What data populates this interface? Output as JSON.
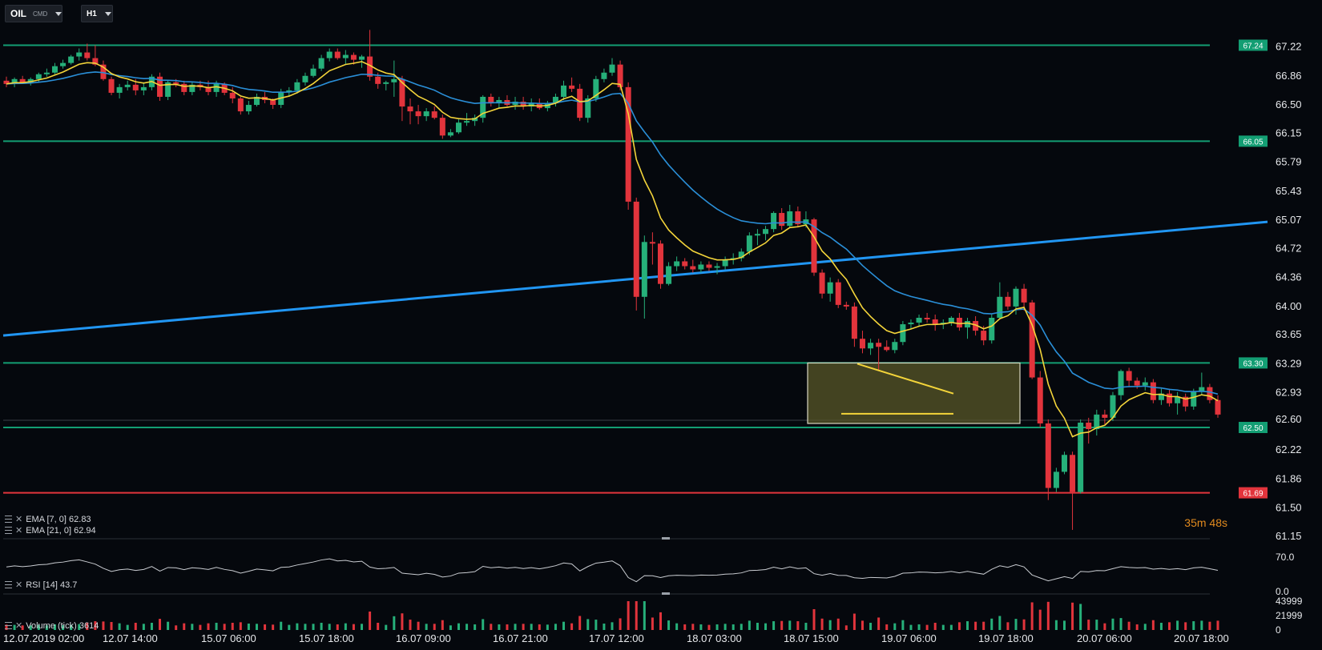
{
  "toolbar": {
    "symbol": "OIL",
    "symbol_type": "CMD",
    "timeframe": "H1"
  },
  "indicators": {
    "ema7": "EMA [7, 0] 62.83",
    "ema21": "EMA [21, 0] 62.94",
    "rsi": "RSI [14] 43.7",
    "volume": "Volume (tick) 3614"
  },
  "timer": {
    "min": "35",
    "min_unit": "m",
    "sec": "48",
    "sec_unit": "s"
  },
  "colors": {
    "background": "#05080d",
    "bull": "#26b07a",
    "bear": "#e2343c",
    "ema7": "#f3d43a",
    "ema21": "#2a8fd8",
    "trendline": "#2196f3",
    "level_green": "#139e73",
    "level_red": "#e2343c",
    "box_fill": "#5c5a2a"
  },
  "chart_data": {
    "type": "candlestick",
    "price_axis": {
      "ticks": [
        "67.22",
        "66.86",
        "66.50",
        "66.15",
        "65.79",
        "65.43",
        "65.07",
        "64.72",
        "64.36",
        "64.00",
        "63.65",
        "63.29",
        "62.93",
        "62.60",
        "62.22",
        "61.86",
        "61.50",
        "61.15"
      ],
      "current_price": "62.60"
    },
    "time_axis": {
      "ticks": [
        "12.07.2019 02:00",
        "12.07 14:00",
        "15.07 06:00",
        "15.07 18:00",
        "16.07 09:00",
        "16.07 21:00",
        "17.07 12:00",
        "18.07 03:00",
        "18.07 15:00",
        "19.07 06:00",
        "19.07 18:00",
        "20.07 06:00",
        "20.07 18:00"
      ]
    },
    "levels": [
      {
        "price": 67.24,
        "label": "67.24",
        "color": "green"
      },
      {
        "price": 66.05,
        "label": "66.05",
        "color": "green"
      },
      {
        "price": 63.3,
        "label": "63.30",
        "color": "green"
      },
      {
        "price": 62.5,
        "label": "62.50",
        "color": "green"
      },
      {
        "price": 61.69,
        "label": "61.69",
        "color": "red"
      }
    ],
    "trendline": {
      "from": {
        "x": "12.07.2019 02:00",
        "y": 63.64
      },
      "to": {
        "x": "20.07 18:00",
        "y": 65.05
      }
    },
    "highlight_box": {
      "x_from": "18.07 13:00",
      "x_to": "19.07 14:00",
      "y_from": 62.55,
      "y_to": 63.3
    },
    "pattern_lines": [
      {
        "from": {
          "x": "18.07 18:00",
          "y": 63.29
        },
        "to": {
          "x": "19.07 11:00",
          "y": 62.92
        }
      },
      {
        "from": {
          "x": "18.07 16:00",
          "y": 62.67
        },
        "to": {
          "x": "19.07 11:00",
          "y": 62.67
        }
      }
    ],
    "candles_ohlc": [
      [
        66.8,
        66.85,
        66.72,
        66.76
      ],
      [
        66.76,
        66.84,
        66.72,
        66.82
      ],
      [
        66.82,
        66.86,
        66.76,
        66.78
      ],
      [
        66.78,
        66.84,
        66.74,
        66.82
      ],
      [
        66.82,
        66.9,
        66.78,
        66.88
      ],
      [
        66.88,
        66.95,
        66.85,
        66.9
      ],
      [
        66.9,
        67.02,
        66.88,
        66.98
      ],
      [
        66.98,
        67.06,
        66.95,
        67.02
      ],
      [
        67.02,
        67.12,
        67.0,
        67.1
      ],
      [
        67.1,
        67.2,
        67.05,
        67.15
      ],
      [
        67.15,
        67.26,
        67.05,
        67.08
      ],
      [
        67.08,
        67.24,
        66.98,
        67.0
      ],
      [
        67.0,
        67.05,
        66.8,
        66.82
      ],
      [
        66.82,
        66.85,
        66.62,
        66.65
      ],
      [
        66.65,
        66.76,
        66.58,
        66.72
      ],
      [
        66.72,
        66.8,
        66.68,
        66.75
      ],
      [
        66.75,
        66.82,
        66.62,
        66.68
      ],
      [
        66.68,
        66.78,
        66.62,
        66.72
      ],
      [
        66.72,
        66.88,
        66.68,
        66.85
      ],
      [
        66.85,
        66.9,
        66.55,
        66.6
      ],
      [
        66.6,
        66.8,
        66.56,
        66.78
      ],
      [
        66.78,
        66.82,
        66.72,
        66.76
      ],
      [
        66.76,
        66.8,
        66.62,
        66.66
      ],
      [
        66.66,
        66.78,
        66.62,
        66.75
      ],
      [
        66.75,
        66.8,
        66.68,
        66.72
      ],
      [
        66.72,
        66.8,
        66.62,
        66.66
      ],
      [
        66.66,
        66.8,
        66.6,
        66.76
      ],
      [
        66.76,
        66.78,
        66.62,
        66.65
      ],
      [
        66.65,
        66.72,
        66.52,
        66.58
      ],
      [
        66.58,
        66.6,
        66.38,
        66.42
      ],
      [
        66.42,
        66.55,
        66.38,
        66.5
      ],
      [
        66.5,
        66.64,
        66.48,
        66.6
      ],
      [
        66.6,
        66.66,
        66.52,
        66.56
      ],
      [
        66.56,
        66.58,
        66.45,
        66.5
      ],
      [
        66.5,
        66.7,
        66.46,
        66.66
      ],
      [
        66.66,
        66.72,
        66.6,
        66.68
      ],
      [
        66.68,
        66.82,
        66.64,
        66.78
      ],
      [
        66.78,
        66.9,
        66.74,
        66.86
      ],
      [
        66.86,
        67.0,
        66.84,
        66.95
      ],
      [
        66.95,
        67.12,
        66.92,
        67.08
      ],
      [
        67.08,
        67.2,
        67.04,
        67.16
      ],
      [
        67.16,
        67.2,
        67.06,
        67.08
      ],
      [
        67.08,
        67.18,
        67.0,
        67.12
      ],
      [
        67.12,
        67.15,
        67.0,
        67.06
      ],
      [
        67.06,
        67.12,
        66.96,
        67.1
      ],
      [
        67.1,
        67.43,
        66.8,
        66.85
      ],
      [
        66.85,
        66.9,
        66.7,
        66.76
      ],
      [
        66.76,
        66.8,
        66.68,
        66.78
      ],
      [
        66.78,
        67.05,
        66.6,
        66.82
      ],
      [
        66.82,
        66.86,
        66.3,
        66.48
      ],
      [
        66.48,
        66.58,
        66.26,
        66.42
      ],
      [
        66.42,
        66.5,
        66.26,
        66.36
      ],
      [
        66.36,
        66.46,
        66.3,
        66.42
      ],
      [
        66.42,
        66.48,
        66.32,
        66.34
      ],
      [
        66.34,
        66.38,
        66.08,
        66.12
      ],
      [
        66.12,
        66.2,
        66.1,
        66.16
      ],
      [
        66.16,
        66.32,
        66.14,
        66.28
      ],
      [
        66.28,
        66.4,
        66.24,
        66.3
      ],
      [
        66.3,
        66.38,
        66.24,
        66.34
      ],
      [
        66.34,
        66.62,
        66.28,
        66.6
      ],
      [
        66.6,
        66.64,
        66.48,
        66.52
      ],
      [
        66.52,
        66.6,
        66.46,
        66.56
      ],
      [
        66.56,
        66.62,
        66.48,
        66.5
      ],
      [
        66.5,
        66.6,
        66.44,
        66.54
      ],
      [
        66.54,
        66.6,
        66.44,
        66.48
      ],
      [
        66.48,
        66.58,
        66.42,
        66.52
      ],
      [
        66.52,
        66.58,
        66.44,
        66.46
      ],
      [
        66.46,
        66.55,
        66.42,
        66.52
      ],
      [
        66.52,
        66.64,
        66.48,
        66.6
      ],
      [
        66.6,
        66.8,
        66.56,
        66.74
      ],
      [
        66.74,
        66.84,
        66.66,
        66.7
      ],
      [
        66.7,
        66.76,
        66.3,
        66.34
      ],
      [
        66.34,
        66.62,
        66.28,
        66.58
      ],
      [
        66.58,
        66.86,
        66.54,
        66.82
      ],
      [
        66.82,
        66.95,
        66.78,
        66.9
      ],
      [
        66.9,
        67.08,
        66.86,
        67.0
      ],
      [
        67.0,
        67.05,
        66.68,
        66.72
      ],
      [
        66.72,
        66.78,
        65.2,
        65.3
      ],
      [
        65.3,
        65.35,
        63.95,
        64.12
      ],
      [
        64.12,
        64.88,
        63.85,
        64.8
      ],
      [
        64.8,
        64.92,
        64.52,
        64.78
      ],
      [
        64.78,
        64.82,
        64.22,
        64.28
      ],
      [
        64.28,
        64.55,
        64.26,
        64.5
      ],
      [
        64.5,
        64.62,
        64.44,
        64.56
      ],
      [
        64.56,
        64.6,
        64.46,
        64.5
      ],
      [
        64.5,
        64.58,
        64.42,
        64.46
      ],
      [
        64.46,
        64.56,
        64.42,
        64.52
      ],
      [
        64.52,
        64.56,
        64.44,
        64.48
      ],
      [
        64.48,
        64.54,
        64.4,
        64.5
      ],
      [
        64.5,
        64.62,
        64.46,
        64.58
      ],
      [
        64.58,
        64.66,
        64.52,
        64.6
      ],
      [
        64.6,
        64.72,
        64.56,
        64.68
      ],
      [
        64.68,
        64.92,
        64.64,
        64.88
      ],
      [
        64.88,
        64.96,
        64.76,
        64.9
      ],
      [
        64.9,
        65.0,
        64.82,
        64.96
      ],
      [
        64.96,
        65.18,
        64.92,
        65.16
      ],
      [
        65.16,
        65.22,
        64.95,
        65.0
      ],
      [
        65.0,
        65.26,
        64.98,
        65.18
      ],
      [
        65.18,
        65.24,
        64.98,
        65.02
      ],
      [
        65.02,
        65.18,
        64.98,
        65.08
      ],
      [
        65.08,
        65.1,
        64.38,
        64.42
      ],
      [
        64.42,
        64.46,
        64.1,
        64.16
      ],
      [
        64.16,
        64.36,
        64.06,
        64.3
      ],
      [
        64.3,
        64.34,
        63.98,
        64.02
      ],
      [
        64.02,
        64.06,
        63.96,
        64.0
      ],
      [
        64.0,
        64.05,
        63.5,
        63.6
      ],
      [
        63.6,
        63.7,
        63.42,
        63.48
      ],
      [
        63.48,
        63.6,
        63.4,
        63.55
      ],
      [
        63.55,
        63.6,
        63.2,
        63.5
      ],
      [
        63.5,
        63.58,
        63.44,
        63.46
      ],
      [
        63.46,
        63.6,
        63.42,
        63.56
      ],
      [
        63.56,
        63.82,
        63.52,
        63.78
      ],
      [
        63.78,
        63.84,
        63.72,
        63.8
      ],
      [
        63.8,
        63.9,
        63.76,
        63.86
      ],
      [
        63.86,
        63.92,
        63.8,
        63.84
      ],
      [
        63.84,
        63.9,
        63.7,
        63.78
      ],
      [
        63.78,
        63.84,
        63.72,
        63.8
      ],
      [
        63.8,
        63.88,
        63.76,
        63.86
      ],
      [
        63.86,
        63.92,
        63.7,
        63.74
      ],
      [
        63.74,
        63.86,
        63.6,
        63.82
      ],
      [
        63.82,
        63.88,
        63.64,
        63.7
      ],
      [
        63.7,
        63.76,
        63.52,
        63.58
      ],
      [
        63.58,
        63.9,
        63.54,
        63.86
      ],
      [
        63.86,
        64.3,
        63.84,
        64.12
      ],
      [
        64.12,
        64.18,
        63.96,
        64.0
      ],
      [
        64.0,
        64.25,
        63.9,
        64.22
      ],
      [
        64.22,
        64.28,
        63.95,
        64.05
      ],
      [
        64.05,
        64.08,
        63.1,
        63.12
      ],
      [
        63.12,
        63.2,
        62.5,
        62.55
      ],
      [
        62.55,
        62.6,
        61.6,
        61.75
      ],
      [
        61.75,
        62.0,
        61.7,
        61.95
      ],
      [
        61.95,
        62.2,
        61.92,
        62.16
      ],
      [
        62.16,
        62.2,
        61.23,
        61.7
      ],
      [
        61.7,
        62.6,
        61.68,
        62.56
      ],
      [
        62.56,
        62.62,
        62.3,
        62.48
      ],
      [
        62.48,
        62.72,
        62.4,
        62.66
      ],
      [
        62.66,
        62.72,
        62.54,
        62.62
      ],
      [
        62.62,
        62.94,
        62.58,
        62.9
      ],
      [
        62.9,
        63.22,
        62.84,
        63.2
      ],
      [
        63.2,
        63.24,
        63.0,
        63.08
      ],
      [
        63.08,
        63.12,
        62.98,
        63.02
      ],
      [
        63.02,
        63.12,
        62.96,
        63.06
      ],
      [
        63.06,
        63.1,
        62.8,
        62.84
      ],
      [
        62.84,
        62.98,
        62.78,
        62.92
      ],
      [
        62.92,
        62.98,
        62.76,
        62.8
      ],
      [
        62.8,
        62.94,
        62.66,
        62.88
      ],
      [
        62.88,
        62.92,
        62.7,
        62.76
      ],
      [
        62.76,
        62.98,
        62.72,
        62.94
      ],
      [
        62.94,
        63.18,
        62.9,
        63.0
      ],
      [
        63.0,
        63.04,
        62.8,
        62.84
      ],
      [
        62.84,
        62.9,
        62.62,
        62.66
      ]
    ],
    "rsi": {
      "ticks": [
        "70.0",
        "0.0"
      ],
      "value": 43.7
    },
    "volume": {
      "ticks": [
        "43999",
        "21999",
        "0"
      ],
      "value": 3614
    }
  }
}
